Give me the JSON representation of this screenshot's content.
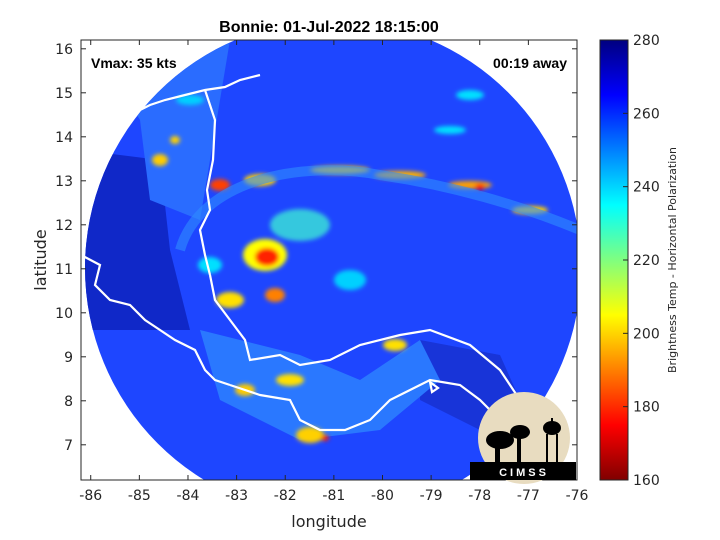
{
  "chart_data": {
    "type": "heatmap",
    "title": "Bonnie: 01-Jul-2022 18:15:00",
    "xlabel": "longitude",
    "ylabel": "latitude",
    "xlim": [
      -86.2,
      -76
    ],
    "ylim": [
      6.2,
      16.2
    ],
    "xticks": [
      -86,
      -85,
      -84,
      -83,
      -82,
      -81,
      -80,
      -79,
      -78,
      -77,
      -76
    ],
    "yticks": [
      7,
      8,
      9,
      10,
      11,
      12,
      13,
      14,
      15,
      16
    ],
    "annotations": {
      "vmax": "Vmax: 35 kts",
      "time_offset": "00:19 away"
    },
    "colorbar": {
      "label": "Brightness Temp - Horizontal Polarization",
      "range": [
        160,
        280
      ],
      "ticks": [
        160,
        180,
        200,
        220,
        240,
        260,
        280
      ],
      "colormap": "jet"
    },
    "storm_center": {
      "lon": -82.2,
      "lat": 11.2
    },
    "swath_center": {
      "lon": -81.1,
      "lat": 11.2
    },
    "logo_text": "CIMSS"
  }
}
